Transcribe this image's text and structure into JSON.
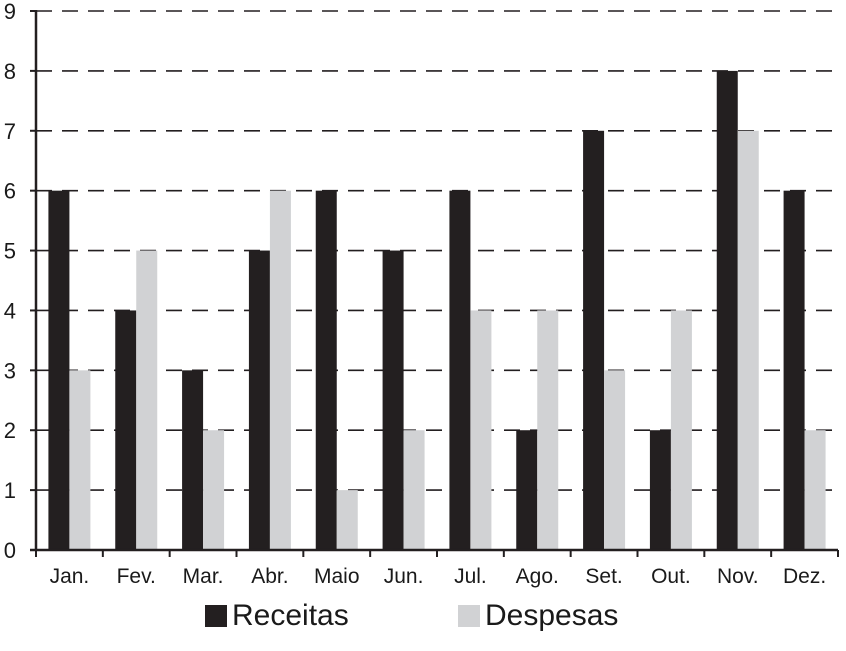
{
  "chart_data": {
    "type": "bar",
    "title": "",
    "xlabel": "",
    "ylabel": "",
    "ylim": [
      0,
      9
    ],
    "yticks": [
      "0",
      "1",
      "2",
      "3",
      "4",
      "5",
      "6",
      "7",
      "8",
      "9"
    ],
    "grid": "horizontal dashed",
    "legend_position": "bottom-center",
    "categories": [
      "Jan.",
      "Fev.",
      "Mar.",
      "Abr.",
      "Maio",
      "Jun.",
      "Jul.",
      "Ago.",
      "Set.",
      "Out.",
      "Nov.",
      "Dez."
    ],
    "series": [
      {
        "name": "Receitas",
        "color": "#231f20",
        "values": [
          6,
          4,
          3,
          5,
          6,
          5,
          6,
          2,
          7,
          2,
          8,
          6
        ]
      },
      {
        "name": "Despesas",
        "color": "#d1d2d4",
        "values": [
          3,
          5,
          2,
          6,
          1,
          2,
          4,
          4,
          3,
          4,
          7,
          2
        ]
      }
    ]
  }
}
